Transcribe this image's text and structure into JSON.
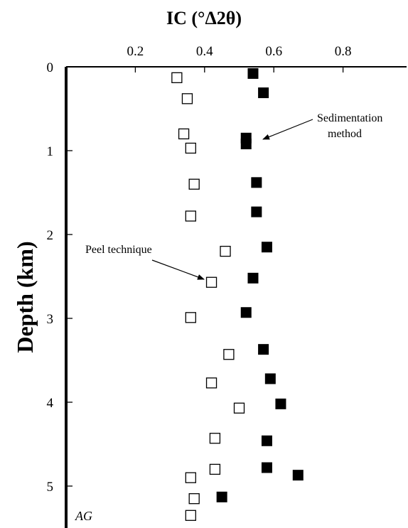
{
  "chart_data": {
    "type": "scatter",
    "title": "",
    "xlabel": "IC (°Δ2θ)",
    "ylabel": "Depth (km)",
    "x_ticks": [
      "0.2",
      "0.4",
      "0.6",
      "0.8"
    ],
    "y_ticks": [
      "0",
      "1",
      "2",
      "3",
      "4",
      "5"
    ],
    "xlim": [
      0.0,
      1.0
    ],
    "ylim": [
      0,
      5.4
    ],
    "y_inverted": true,
    "x_axis_position": "top",
    "grid": false,
    "panel_label": "AG",
    "series": [
      {
        "name": "Peel technique",
        "marker": "open-square",
        "color": "#000000",
        "points": [
          {
            "x": 0.32,
            "y": 0.13
          },
          {
            "x": 0.35,
            "y": 0.38
          },
          {
            "x": 0.34,
            "y": 0.8
          },
          {
            "x": 0.36,
            "y": 0.97
          },
          {
            "x": 0.37,
            "y": 1.4
          },
          {
            "x": 0.36,
            "y": 1.78
          },
          {
            "x": 0.46,
            "y": 2.2
          },
          {
            "x": 0.42,
            "y": 2.57
          },
          {
            "x": 0.36,
            "y": 2.99
          },
          {
            "x": 0.47,
            "y": 3.43
          },
          {
            "x": 0.42,
            "y": 3.77
          },
          {
            "x": 0.5,
            "y": 4.07
          },
          {
            "x": 0.43,
            "y": 4.43
          },
          {
            "x": 0.43,
            "y": 4.8
          },
          {
            "x": 0.36,
            "y": 4.9
          },
          {
            "x": 0.37,
            "y": 5.15
          },
          {
            "x": 0.36,
            "y": 5.35
          }
        ]
      },
      {
        "name": "Sedimentation method",
        "marker": "filled-square",
        "color": "#000000",
        "points": [
          {
            "x": 0.54,
            "y": 0.08
          },
          {
            "x": 0.57,
            "y": 0.31
          },
          {
            "x": 0.52,
            "y": 0.85
          },
          {
            "x": 0.52,
            "y": 0.92
          },
          {
            "x": 0.55,
            "y": 1.38
          },
          {
            "x": 0.55,
            "y": 1.73
          },
          {
            "x": 0.58,
            "y": 2.15
          },
          {
            "x": 0.54,
            "y": 2.52
          },
          {
            "x": 0.52,
            "y": 2.93
          },
          {
            "x": 0.57,
            "y": 3.37
          },
          {
            "x": 0.59,
            "y": 3.72
          },
          {
            "x": 0.62,
            "y": 4.02
          },
          {
            "x": 0.58,
            "y": 4.46
          },
          {
            "x": 0.58,
            "y": 4.78
          },
          {
            "x": 0.67,
            "y": 4.87
          },
          {
            "x": 0.45,
            "y": 5.13
          }
        ]
      }
    ],
    "annotations": [
      {
        "text_lines": [
          "Sedimentation",
          "method"
        ],
        "series": "Sedimentation method"
      },
      {
        "text_lines": [
          "Peel technique"
        ],
        "series": "Peel technique"
      }
    ]
  }
}
